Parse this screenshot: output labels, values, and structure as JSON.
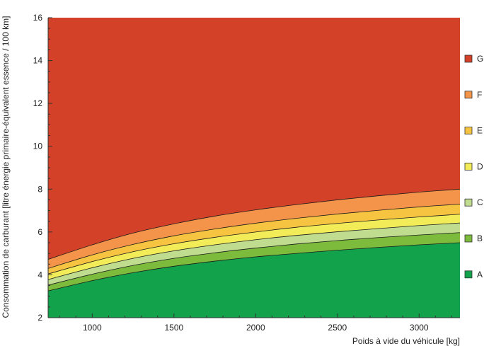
{
  "chart_data": {
    "type": "area",
    "xlabel": "Poids à vide du véhicule [kg]",
    "ylabel": "Consommation de carburant [litre énergie primaire-équivalent essence / 100 km]",
    "xlim": [
      730,
      3250
    ],
    "ylim": [
      2,
      16
    ],
    "x_ticks": [
      1000,
      1500,
      2000,
      2500,
      3000
    ],
    "y_ticks": [
      2,
      4,
      6,
      8,
      10,
      12,
      14,
      16
    ],
    "grid": false,
    "legend_position": "right",
    "x": [
      730,
      1000,
      1250,
      1500,
      1750,
      2000,
      2250,
      2500,
      2750,
      3000,
      3250
    ],
    "series": [
      {
        "name": "A",
        "color": "#12a24b",
        "upper": [
          3.25,
          3.73,
          4.1,
          4.4,
          4.64,
          4.84,
          5.0,
          5.15,
          5.28,
          5.4,
          5.5
        ]
      },
      {
        "name": "B",
        "color": "#7dbb3c",
        "upper": [
          3.52,
          4.03,
          4.44,
          4.77,
          5.03,
          5.25,
          5.44,
          5.6,
          5.74,
          5.86,
          5.97
        ]
      },
      {
        "name": "C",
        "color": "#c0dc8e",
        "upper": [
          3.78,
          4.33,
          4.77,
          5.12,
          5.4,
          5.64,
          5.84,
          6.01,
          6.16,
          6.3,
          6.42
        ]
      },
      {
        "name": "D",
        "color": "#f3ec59",
        "upper": [
          4.04,
          4.62,
          5.08,
          5.45,
          5.75,
          6.0,
          6.22,
          6.4,
          6.56,
          6.7,
          6.83
        ]
      },
      {
        "name": "E",
        "color": "#f6c440",
        "upper": [
          4.3,
          4.93,
          5.42,
          5.82,
          6.14,
          6.41,
          6.64,
          6.84,
          7.01,
          7.17,
          7.3
        ]
      },
      {
        "name": "F",
        "color": "#f4944a",
        "upper": [
          4.72,
          5.4,
          5.95,
          6.38,
          6.74,
          7.03,
          7.28,
          7.5,
          7.69,
          7.86,
          8.0
        ]
      },
      {
        "name": "G",
        "color": "#d24128",
        "upper": [
          16,
          16,
          16,
          16,
          16,
          16,
          16,
          16,
          16,
          16,
          16
        ]
      }
    ]
  }
}
